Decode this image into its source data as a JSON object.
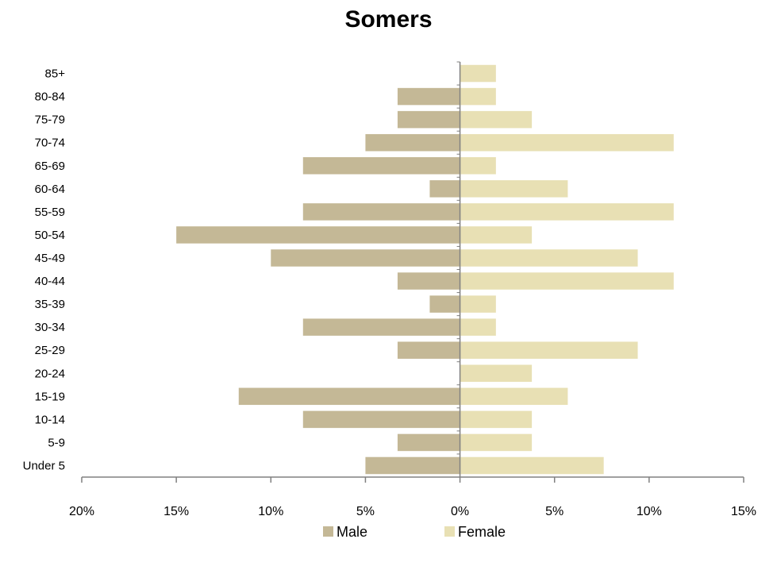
{
  "chart_data": {
    "type": "bar",
    "orientation": "horizontal",
    "title": "Somers",
    "categories": [
      "Under 5",
      "5-9",
      "10-14",
      "15-19",
      "20-24",
      "25-29",
      "30-34",
      "35-39",
      "40-44",
      "45-49",
      "50-54",
      "55-59",
      "60-64",
      "65-69",
      "70-74",
      "75-79",
      "80-84",
      "85+"
    ],
    "series": [
      {
        "name": "Male",
        "color": "#c4b896",
        "values": [
          -5.0,
          -3.3,
          -8.3,
          -11.7,
          0,
          -3.3,
          -8.3,
          -1.6,
          -3.3,
          -10.0,
          -15.0,
          -8.3,
          -1.6,
          -8.3,
          -5.0,
          -3.3,
          -3.3,
          0
        ]
      },
      {
        "name": "Female",
        "color": "#e8e0b4",
        "values": [
          7.6,
          3.8,
          3.8,
          5.7,
          3.8,
          9.4,
          1.9,
          1.9,
          11.3,
          9.4,
          3.8,
          11.3,
          5.7,
          1.9,
          11.3,
          3.8,
          1.9,
          1.9
        ]
      }
    ],
    "xlim": [
      -20,
      15
    ],
    "xticks": [
      -20,
      -15,
      -10,
      -5,
      0,
      5,
      10,
      15
    ],
    "xtick_labels": [
      "20%",
      "15%",
      "10%",
      "5%",
      "0%",
      "5%",
      "10%",
      "15%"
    ],
    "grid": false,
    "legend_position": "bottom"
  }
}
